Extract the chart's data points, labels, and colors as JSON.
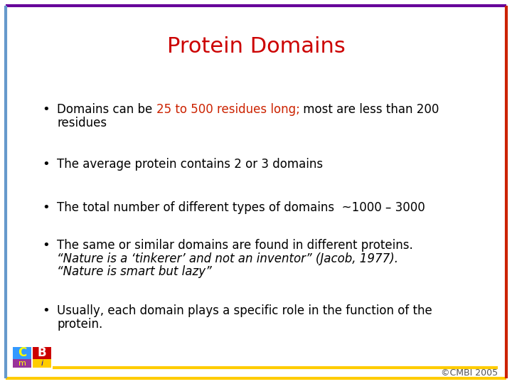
{
  "title": "Protein Domains",
  "title_color": "#cc0000",
  "title_fontsize": 22,
  "background_color": "#ffffff",
  "border_left_color": "#6699cc",
  "border_right_color": "#cc2200",
  "border_top_color": "#660099",
  "border_bottom_color": "#ffcc00",
  "border_lw": 3,
  "text_color": "#000000",
  "highlight_color": "#cc2200",
  "fontsize": 12,
  "footer_text": "©CMBI 2005",
  "footer_color": "#555555",
  "footer_fontsize": 9,
  "bullet_char": "•",
  "bullet1_plain_before": "Domains can be ",
  "bullet1_highlight": "25 to 500 residues long;",
  "bullet1_plain_after": " most are less than 200",
  "bullet1_line2": "residues",
  "bullet2": "The average protein contains 2 or 3 domains",
  "bullet3": "The total number of different types of domains  ~1000 – 3000",
  "bullet4_line1": "The same or similar domains are found in different proteins.",
  "bullet4_line2": "“Nature is a ‘tinkerer’ and not an inventor” (Jacob, 1977).",
  "bullet4_line3": "“Nature is smart but lazy”",
  "bullet5_line1": "Usually, each domain plays a specific role in the function of the",
  "bullet5_line2": "protein."
}
